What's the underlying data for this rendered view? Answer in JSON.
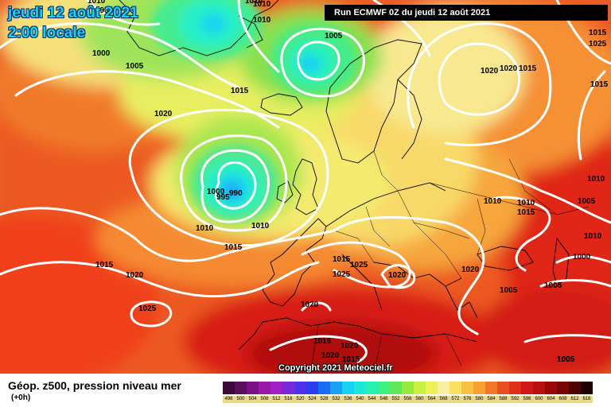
{
  "header": {
    "date_line": "jeudi 12 août 2021",
    "time_line": "2:00 locale",
    "run_info": "Run ECMWF 0Z du jeudi 12 août 2021"
  },
  "copyright": "Copyright 2021 Meteociel.fr",
  "legend": {
    "title": "Géop. z500, pression niveau mer",
    "subtitle": "(+0h)",
    "scale": [
      {
        "value": "496",
        "color": "#3a0a3a"
      },
      {
        "value": "500",
        "color": "#5a0e5e"
      },
      {
        "value": "504",
        "color": "#7a1286"
      },
      {
        "value": "508",
        "color": "#9a18a8"
      },
      {
        "value": "512",
        "color": "#a020c8"
      },
      {
        "value": "516",
        "color": "#7a28d8"
      },
      {
        "value": "520",
        "color": "#5030e8"
      },
      {
        "value": "524",
        "color": "#2a3ef0"
      },
      {
        "value": "528",
        "color": "#1a6cf0"
      },
      {
        "value": "532",
        "color": "#1aa0f0"
      },
      {
        "value": "536",
        "color": "#18d0f0"
      },
      {
        "value": "540",
        "color": "#1ae8d8"
      },
      {
        "value": "544",
        "color": "#28f0b0"
      },
      {
        "value": "548",
        "color": "#40f080"
      },
      {
        "value": "552",
        "color": "#60e858"
      },
      {
        "value": "556",
        "color": "#98e840"
      },
      {
        "value": "560",
        "color": "#c8f040"
      },
      {
        "value": "564",
        "color": "#eef058"
      },
      {
        "value": "568",
        "color": "#f8f0a0"
      },
      {
        "value": "572",
        "color": "#f8e060"
      },
      {
        "value": "576",
        "color": "#f8c040"
      },
      {
        "value": "580",
        "color": "#f8a030"
      },
      {
        "value": "584",
        "color": "#f07828"
      },
      {
        "value": "588",
        "color": "#e85020"
      },
      {
        "value": "592",
        "color": "#e03018"
      },
      {
        "value": "596",
        "color": "#d01818"
      },
      {
        "value": "600",
        "color": "#b81010"
      },
      {
        "value": "604",
        "color": "#980808"
      },
      {
        "value": "608",
        "color": "#780404"
      },
      {
        "value": "612",
        "color": "#500202"
      },
      {
        "value": "616",
        "color": "#200000"
      }
    ]
  },
  "isobar_labels": [
    "995",
    "1010",
    "1010",
    "1005",
    "1000",
    "1005",
    "1015",
    "1020",
    "1000",
    "995",
    "990",
    "1010",
    "1015",
    "1010",
    "1015",
    "1015",
    "1020",
    "1025",
    "1020",
    "1025",
    "1020",
    "1025",
    "1020",
    "1020",
    "1020",
    "1015",
    "1015",
    "1020",
    "1015",
    "1025",
    "1020",
    "1015",
    "1010",
    "1010",
    "1010",
    "1015",
    "1005",
    "1005",
    "1015",
    "1005",
    "1000",
    "1010",
    "1010",
    "1010",
    "1005",
    "1005"
  ]
}
